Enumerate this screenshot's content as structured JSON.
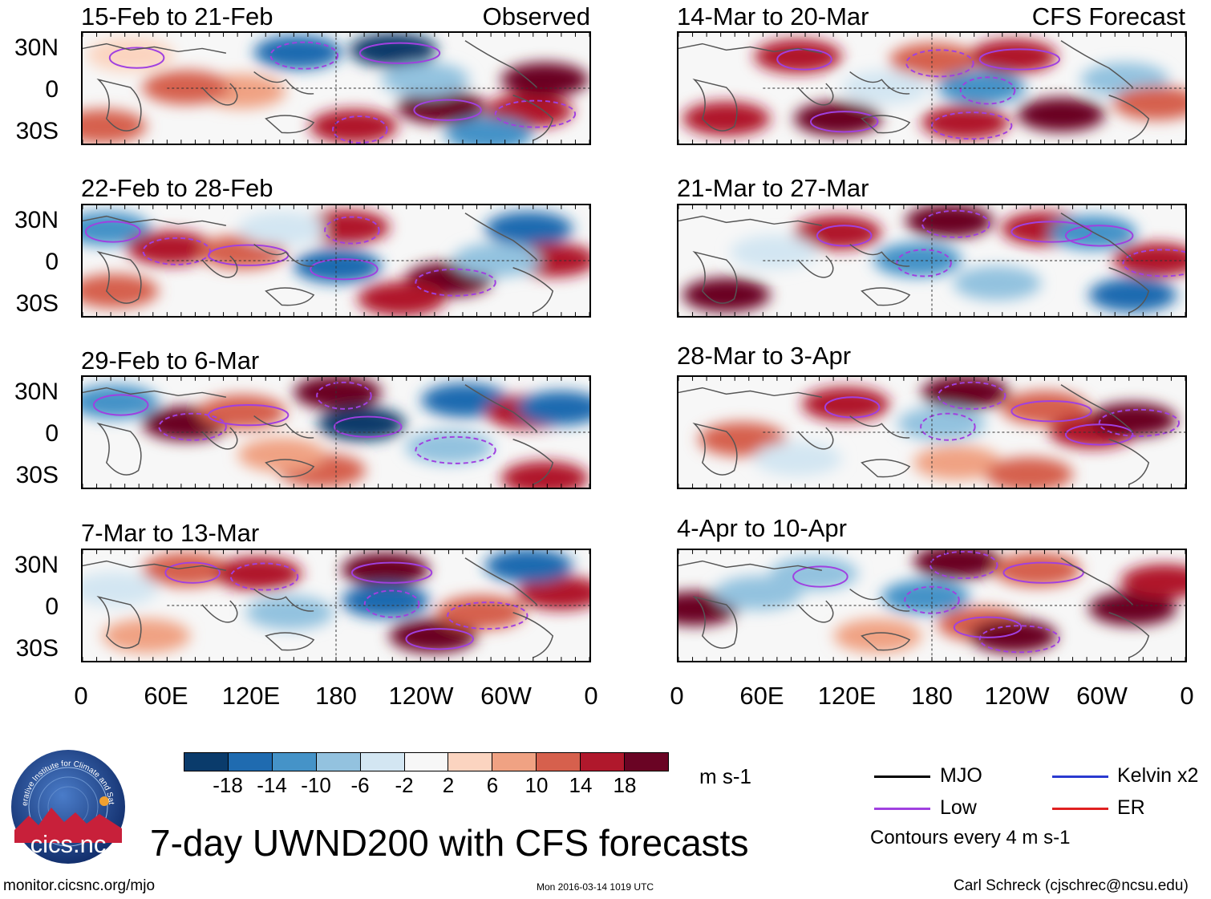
{
  "panels_left": [
    {
      "period": "15-Feb to 21-Feb",
      "label": "Observed"
    },
    {
      "period": "22-Feb to 28-Feb",
      "label": ""
    },
    {
      "period": "29-Feb to 6-Mar",
      "label": ""
    },
    {
      "period": "7-Mar to 13-Mar",
      "label": ""
    }
  ],
  "panels_right": [
    {
      "period": "14-Mar to 20-Mar",
      "label": "CFS Forecast"
    },
    {
      "period": "21-Mar to 27-Mar",
      "label": ""
    },
    {
      "period": "28-Mar to 3-Apr",
      "label": ""
    },
    {
      "period": "4-Apr to 10-Apr",
      "label": ""
    }
  ],
  "lat_labels": [
    "30N",
    "0",
    "30S"
  ],
  "lon_labels": [
    "0",
    "60E",
    "120E",
    "180",
    "120W",
    "60W",
    "0"
  ],
  "colorbar": {
    "ticks": [
      "-18",
      "-14",
      "-10",
      "-6",
      "-2",
      "2",
      "6",
      "10",
      "14",
      "18"
    ],
    "colors": [
      "#0a3b6b",
      "#1f6bb0",
      "#4593c8",
      "#93c2df",
      "#d3e6f2",
      "#f7f7f7",
      "#fbd4c0",
      "#f0a283",
      "#d6604d",
      "#b0182c",
      "#6a0424"
    ],
    "units": "m s-1"
  },
  "legend": {
    "items": [
      {
        "name": "MJO",
        "color": "#000000"
      },
      {
        "name": "Kelvin x2",
        "color": "#2a3ad0"
      },
      {
        "name": "Low",
        "color": "#a040e0"
      },
      {
        "name": "ER",
        "color": "#e02020"
      }
    ],
    "contour_note": "Contours every 4 m s-1"
  },
  "title": "7-day UWND200 with CFS forecasts",
  "logo_text": "cics.nc",
  "logo_ring_text": "Cooperative Institute for Climate and Satellites",
  "footer": {
    "url": "monitor.cicsnc.org/mjo",
    "timestamp": "Mon 2016-03-14 1019 UTC",
    "author": "Carl Schreck (cjschrec@ncsu.edu)"
  }
}
